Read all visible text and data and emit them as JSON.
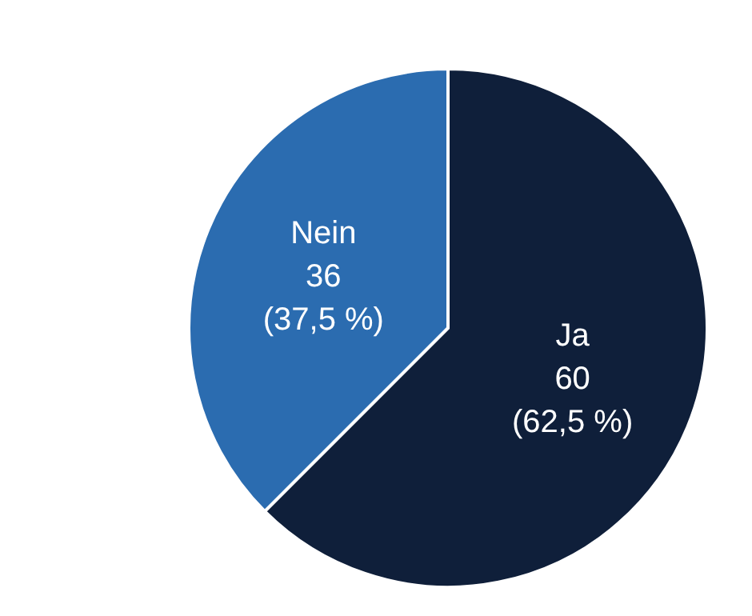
{
  "chart_data": {
    "type": "pie",
    "categories": [
      "Ja",
      "Nein"
    ],
    "values": [
      60,
      36
    ],
    "colors": [
      "#0f1f3a",
      "#2b6cb0"
    ],
    "value_labels": [
      "60\n(62,5 %)",
      "36\n(37,5 %)"
    ],
    "legend": false
  }
}
